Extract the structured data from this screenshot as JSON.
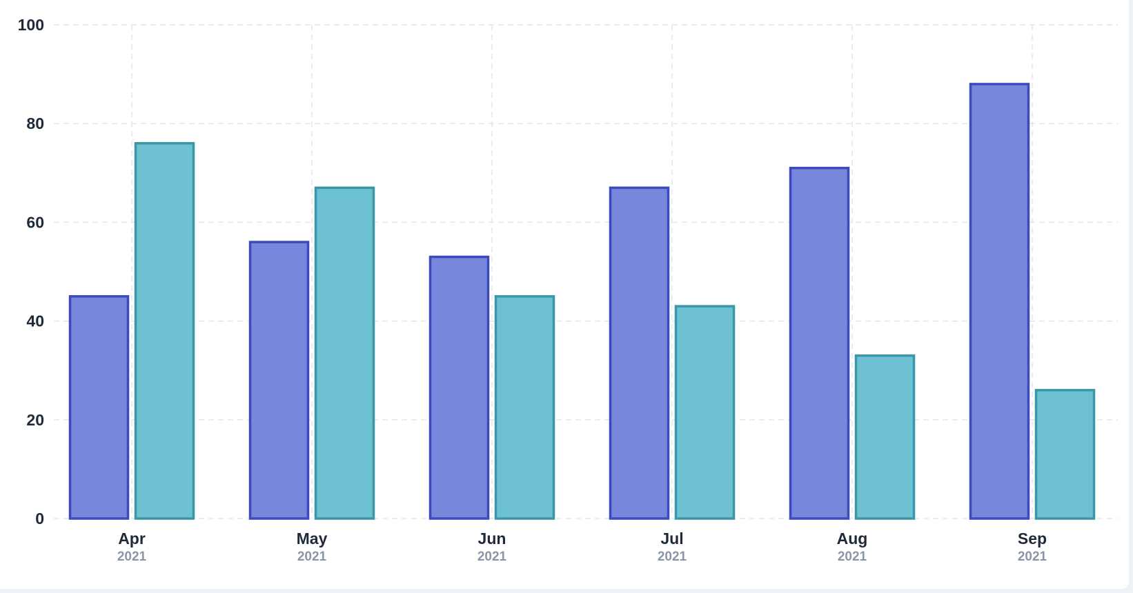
{
  "chart_data": {
    "type": "bar",
    "categories": [
      "Apr",
      "May",
      "Jun",
      "Jul",
      "Aug",
      "Sep"
    ],
    "category_sublabels": [
      "2021",
      "2021",
      "2021",
      "2021",
      "2021",
      "2021"
    ],
    "series": [
      {
        "values": [
          45,
          56,
          53,
          67,
          71,
          88
        ],
        "fill": "#7886db",
        "stroke": "#3b4bbd"
      },
      {
        "values": [
          76,
          67,
          45,
          43,
          33,
          26
        ],
        "fill": "#6ec0d3",
        "stroke": "#3a97a8"
      }
    ],
    "ylim": [
      0,
      100
    ],
    "yticks": [
      0,
      20,
      40,
      60,
      80,
      100
    ],
    "grid": true,
    "title": "",
    "xlabel": "",
    "ylabel": ""
  }
}
